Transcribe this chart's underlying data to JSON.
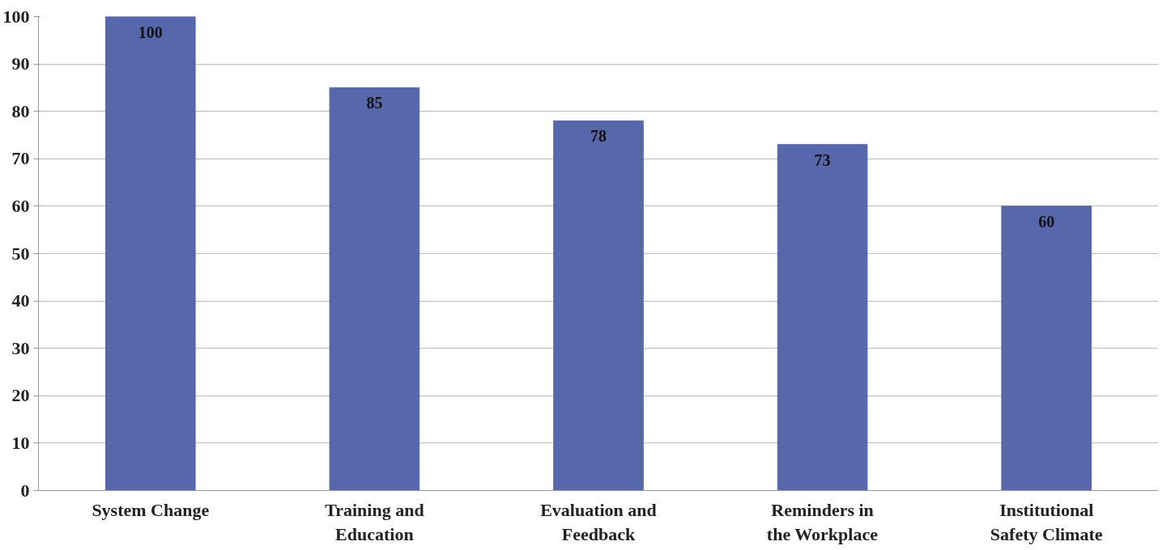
{
  "chart_data": {
    "type": "bar",
    "categories": [
      "System Change",
      "Training and\nEducation",
      "Evaluation and\nFeedback",
      "Reminders in\nthe Workplace",
      "Institutional\nSafety Climate"
    ],
    "values": [
      100,
      85,
      78,
      73,
      60
    ],
    "color": "#5767ab",
    "ylim": [
      0,
      100
    ],
    "yticks": [
      0,
      10,
      20,
      30,
      40,
      50,
      60,
      70,
      80,
      90,
      100
    ],
    "grid": "y",
    "data_labels": true
  }
}
